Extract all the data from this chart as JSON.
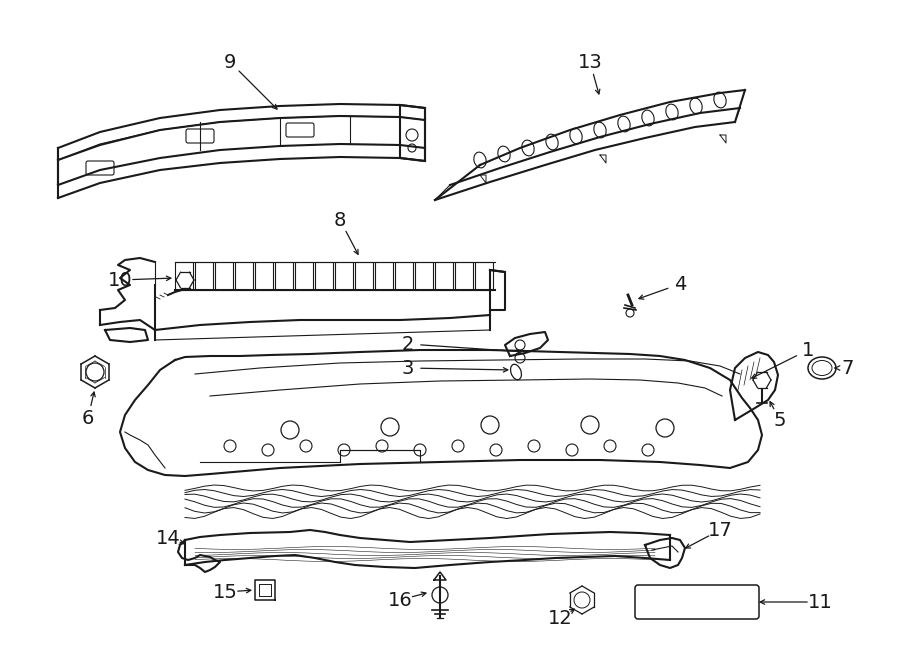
{
  "background_color": "#ffffff",
  "line_color": "#1a1a1a",
  "figsize": [
    9.0,
    6.61
  ],
  "dpi": 100
}
